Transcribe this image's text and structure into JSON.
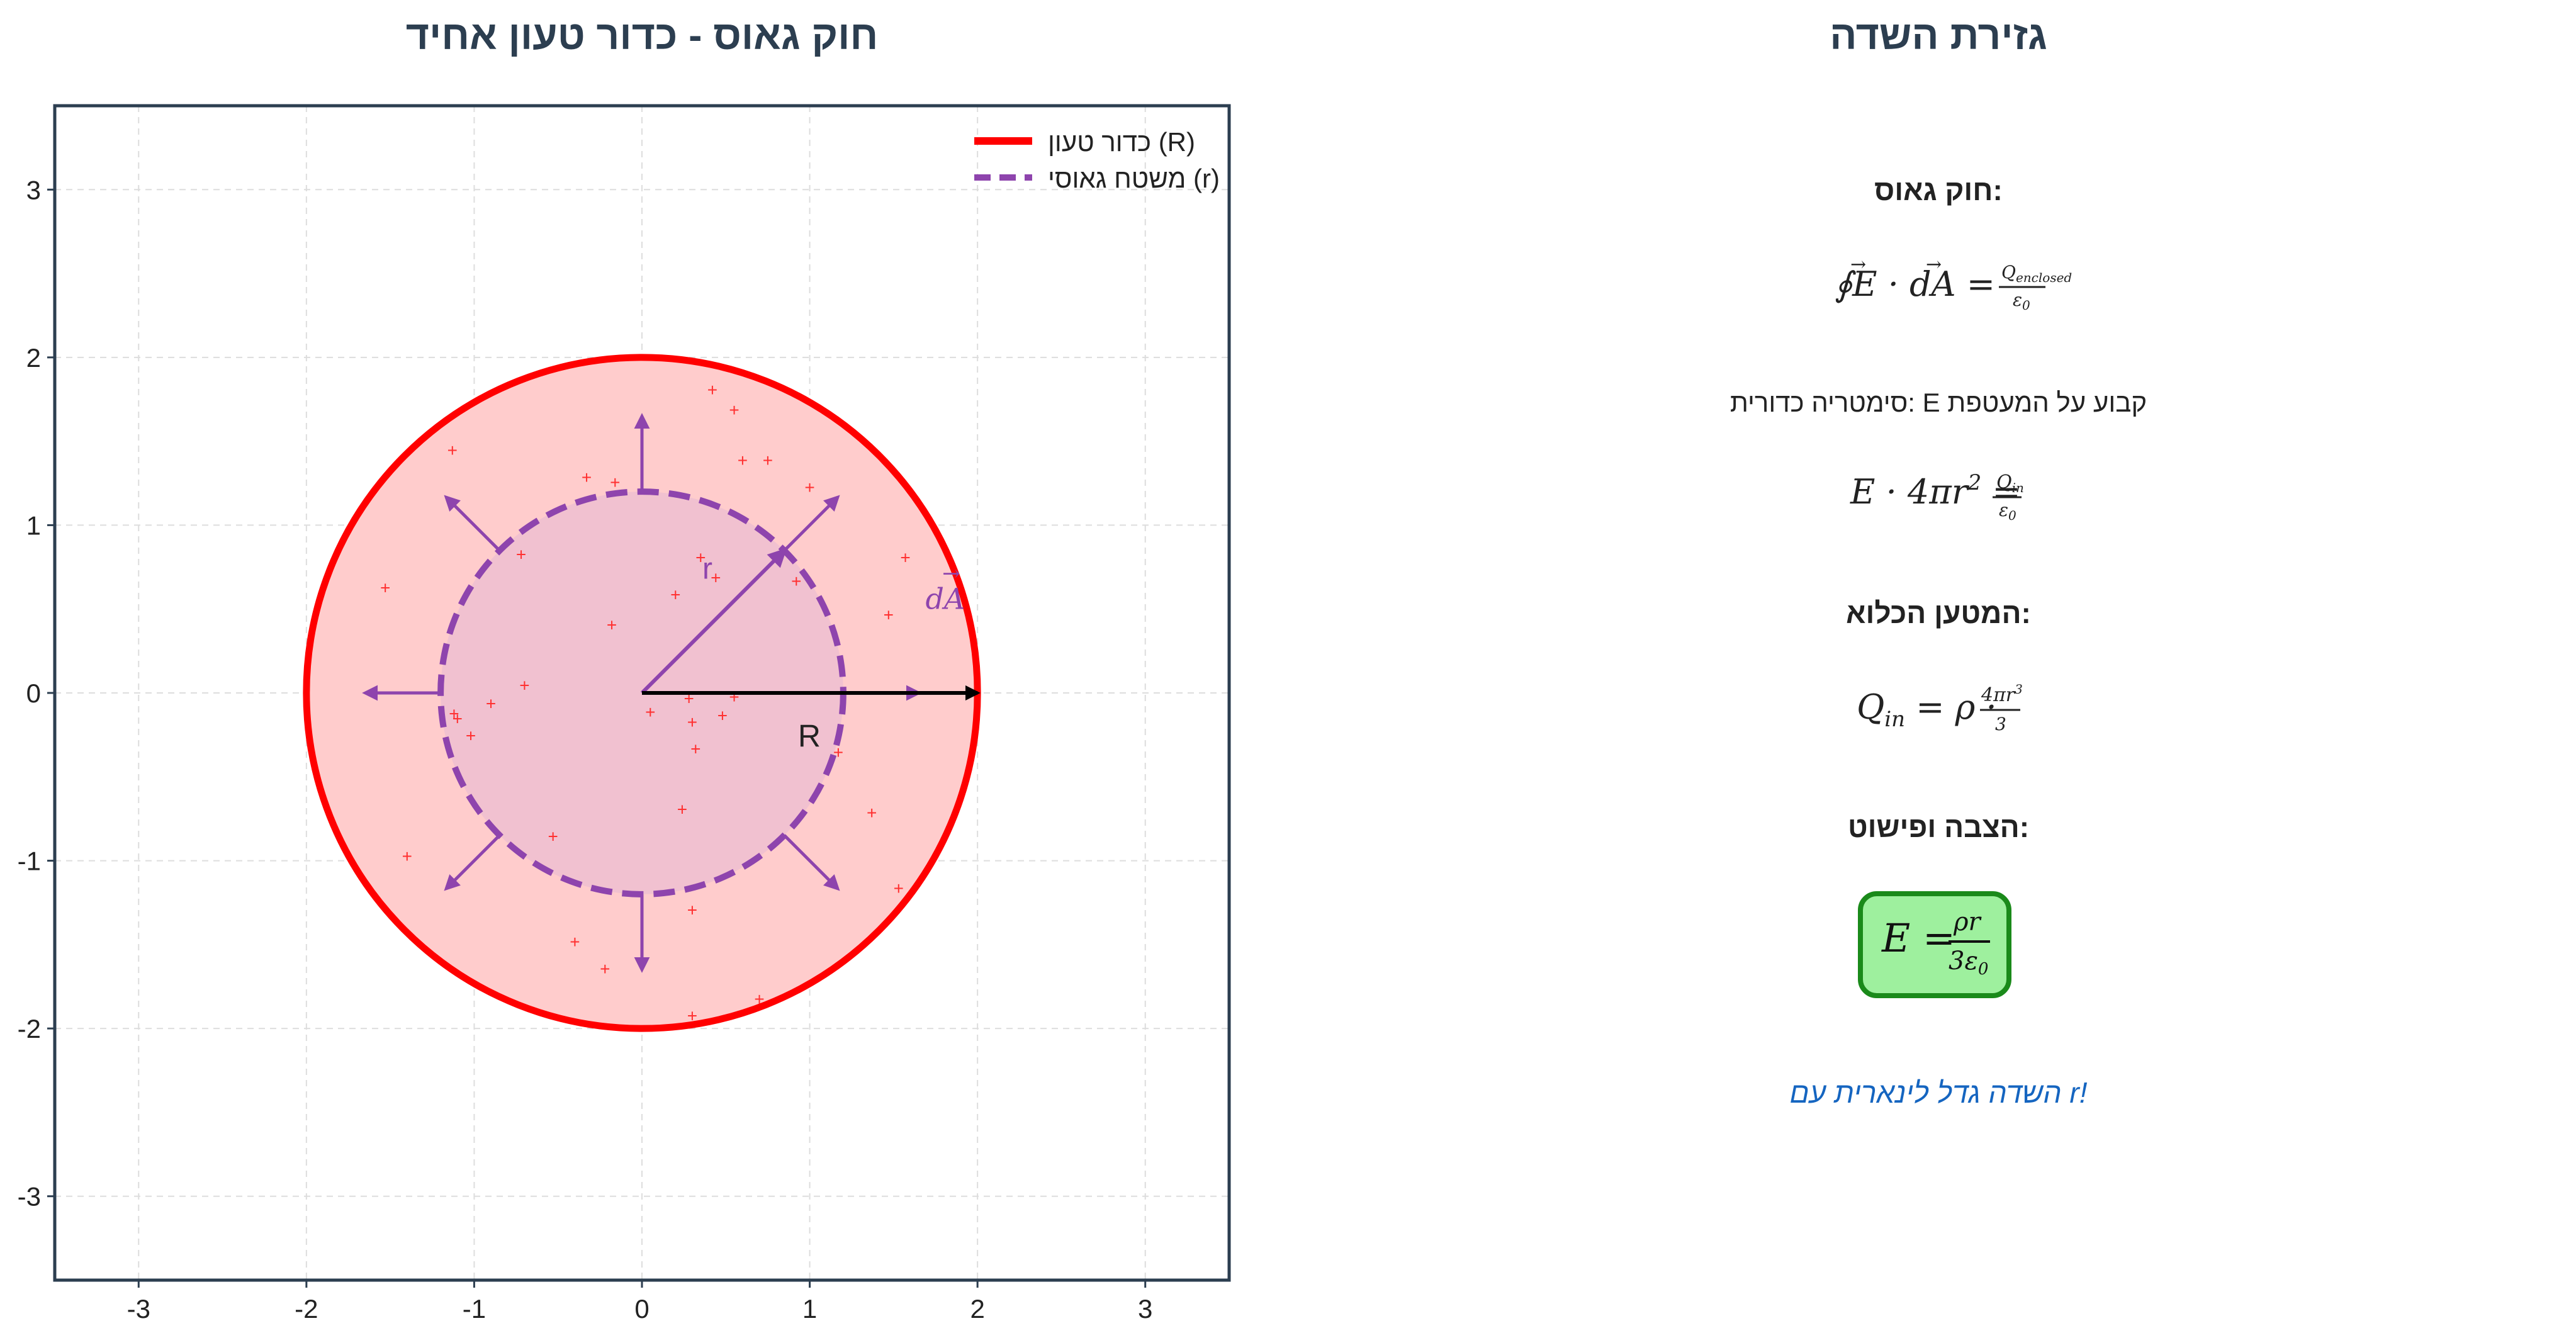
{
  "left_title": "חוק גאוס - כדור טעון אחיד",
  "right_title": "גזירת השדה",
  "legend": {
    "sphere_label": "כדור טעון (R)",
    "gauss_label": "משטח גאוסי (r)"
  },
  "labels": {
    "r": "r",
    "R": "R",
    "dA": "dA"
  },
  "derivation": {
    "gauss_law_heading": "חוק גאוס:",
    "symmetry_text": "סימטריה כדורית: E קבוע על המעטפת",
    "enclosed_heading": "המטען הכלוא:",
    "substitute_heading": "הצבה ופישוט:",
    "conclusion": "השדה גדל לינארית עם r!"
  },
  "chart_data": {
    "type": "diagram",
    "xlim": [
      -3.5,
      3.5
    ],
    "ylim": [
      -3.5,
      3.5
    ],
    "grid": true,
    "legend_position": "top-right",
    "x_ticks": [
      "-3",
      "-2",
      "-1",
      "0",
      "1",
      "2",
      "3"
    ],
    "y_ticks": [
      "-3",
      "-2",
      "-1",
      "0",
      "1",
      "2",
      "3"
    ],
    "sphere_radius": 2,
    "gauss_radius": 1.2,
    "colors": {
      "sphere": "#ff0000",
      "sphere_fill": "#ffcccc",
      "gauss": "#8e44ad",
      "gauss_fill": "#efc0d0",
      "charge": "#ff3030",
      "title": "#2c3e50",
      "result_box": "#9ef09e",
      "result_border": "#1a8a1a",
      "conclusion": "#1565c0"
    },
    "charges": [
      [
        0.42,
        1.8
      ],
      [
        0.55,
        1.68
      ],
      [
        -1.13,
        1.44
      ],
      [
        0.6,
        1.38
      ],
      [
        0.75,
        1.38
      ],
      [
        -0.33,
        1.28
      ],
      [
        -0.16,
        1.25
      ],
      [
        1.0,
        1.22
      ],
      [
        -0.72,
        0.82
      ],
      [
        0.35,
        0.8
      ],
      [
        0.44,
        0.68
      ],
      [
        0.92,
        0.66
      ],
      [
        1.57,
        0.8
      ],
      [
        -1.53,
        0.62
      ],
      [
        0.2,
        0.58
      ],
      [
        -0.18,
        0.4
      ],
      [
        1.47,
        0.46
      ],
      [
        -0.7,
        0.04
      ],
      [
        0.28,
        -0.04
      ],
      [
        0.55,
        -0.03
      ],
      [
        -0.9,
        -0.07
      ],
      [
        -1.12,
        -0.13
      ],
      [
        0.05,
        -0.12
      ],
      [
        0.48,
        -0.14
      ],
      [
        -1.1,
        -0.16
      ],
      [
        0.3,
        -0.18
      ],
      [
        -1.02,
        -0.26
      ],
      [
        0.32,
        -0.34
      ],
      [
        1.17,
        -0.36
      ],
      [
        0.24,
        -0.7
      ],
      [
        1.37,
        -0.72
      ],
      [
        -0.53,
        -0.86
      ],
      [
        -1.4,
        -0.98
      ],
      [
        1.53,
        -1.17
      ],
      [
        0.3,
        -1.3
      ],
      [
        -0.4,
        -1.49
      ],
      [
        -0.22,
        -1.65
      ],
      [
        0.7,
        -1.83
      ],
      [
        0.3,
        -1.93
      ]
    ],
    "normal_arrow_angles": [
      0,
      45,
      90,
      135,
      180,
      225,
      270,
      315
    ],
    "r_arrow_angle": 45
  }
}
